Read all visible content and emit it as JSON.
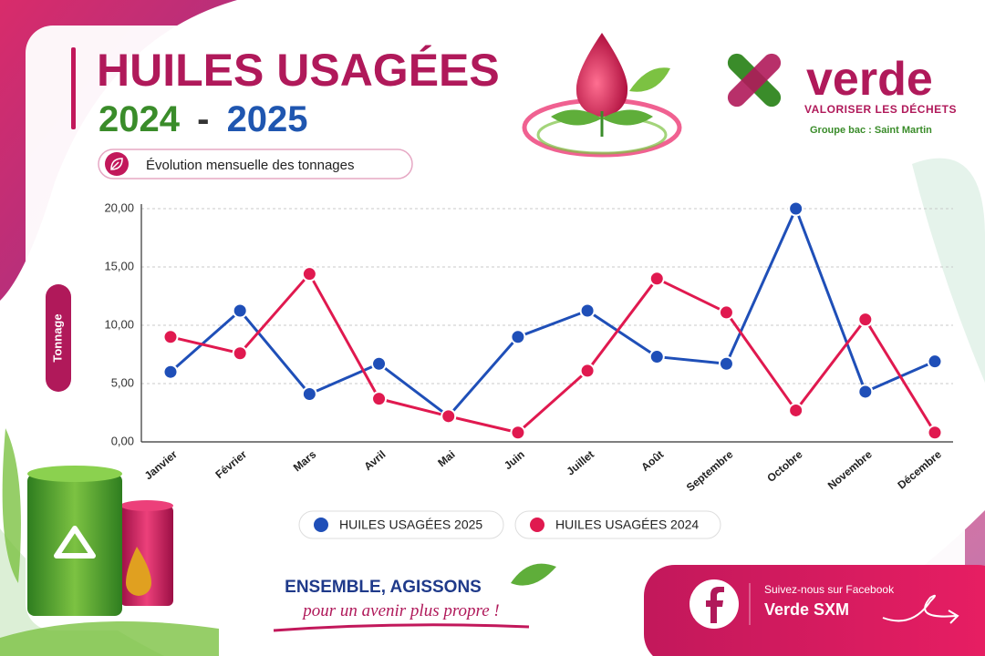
{
  "header": {
    "title": "HUILES USAGÉES",
    "year_a": "2024",
    "separator": "-",
    "year_b": "2025",
    "subtitle": "Évolution mensuelle des tonnages"
  },
  "logo": {
    "name": "verde",
    "tagline": "VALORISER LES DÉCHETS",
    "group": "Groupe bac : Saint Martin"
  },
  "footer": {
    "slogan_bold": "ENSEMBLE, AGISSONS",
    "slogan_script": "pour un avenir plus propre !",
    "facebook_prompt": "Suivez-nous sur Facebook",
    "facebook_page": "Verde SXM"
  },
  "chart_data": {
    "type": "line",
    "y_label": "Tonnage",
    "categories": [
      "Janvier",
      "Février",
      "Mars",
      "Avril",
      "Mai",
      "Juin",
      "Juillet",
      "Août",
      "Septembre",
      "Octobre",
      "Novembre",
      "Décembre"
    ],
    "series": [
      {
        "name": "HUILES USAGÉES 2025",
        "color": "#1f4fb8",
        "values": [
          6.0,
          11.25,
          4.1,
          6.7,
          2.2,
          9.0,
          11.25,
          7.3,
          6.7,
          20.0,
          4.3,
          6.9
        ]
      },
      {
        "name": "HUILES USAGÉES 2024",
        "color": "#e0194f",
        "values": [
          9.0,
          7.6,
          14.4,
          3.7,
          2.2,
          0.8,
          6.1,
          14.0,
          11.1,
          2.7,
          10.5,
          0.8
        ]
      }
    ],
    "ylim": [
      0,
      20
    ],
    "yticks": [
      {
        "value": 0,
        "label": "0,00"
      },
      {
        "value": 5,
        "label": "5,00"
      },
      {
        "value": 10,
        "label": "10,00"
      },
      {
        "value": 15,
        "label": "15,00"
      },
      {
        "value": 20,
        "label": "20,00"
      }
    ],
    "grid": true
  }
}
